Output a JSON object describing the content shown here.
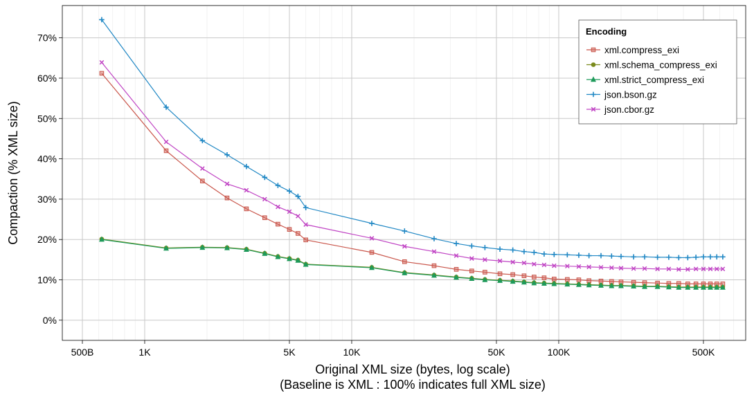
{
  "chart_data": {
    "type": "line",
    "x_scale": "log",
    "xlabel": "Original  XML  size (bytes, log scale)",
    "xlabel2": "(Baseline is  XML : 100% indicates full  XML  size)",
    "ylabel": "Compaction (%  XML  size)",
    "xlim": [
      400,
      800000
    ],
    "ylim": [
      -5,
      78
    ],
    "grid": true,
    "legend_placement": "top-right",
    "legend_title": "Encoding",
    "x_ticks": [
      {
        "value": 500,
        "label": "500B"
      },
      {
        "value": 1000,
        "label": "1K"
      },
      {
        "value": 5000,
        "label": "5K"
      },
      {
        "value": 10000,
        "label": "10K"
      },
      {
        "value": 50000,
        "label": "50K"
      },
      {
        "value": 100000,
        "label": "100K"
      },
      {
        "value": 500000,
        "label": "500K"
      }
    ],
    "y_ticks": [
      {
        "value": 0,
        "label": "0%"
      },
      {
        "value": 10,
        "label": "10%"
      },
      {
        "value": 20,
        "label": "20%"
      },
      {
        "value": 30,
        "label": "30%"
      },
      {
        "value": 40,
        "label": "40%"
      },
      {
        "value": 50,
        "label": "50%"
      },
      {
        "value": 60,
        "label": "60%"
      },
      {
        "value": 70,
        "label": "70%"
      }
    ],
    "series": [
      {
        "name": "xml.compress_exi",
        "color": "#C9554A",
        "marker": "square",
        "points": [
          [
            620,
            61.2
          ],
          [
            1270,
            42
          ],
          [
            1900,
            34.5
          ],
          [
            2500,
            30.3
          ],
          [
            3100,
            27.6
          ],
          [
            3800,
            25.4
          ],
          [
            4400,
            23.8
          ],
          [
            5000,
            22.5
          ],
          [
            5500,
            21.5
          ],
          [
            6000,
            19.9
          ],
          [
            12500,
            16.8
          ],
          [
            18000,
            14.5
          ],
          [
            25000,
            13.5
          ],
          [
            32000,
            12.6
          ],
          [
            38000,
            12.2
          ],
          [
            44000,
            11.9
          ],
          [
            52000,
            11.5
          ],
          [
            60000,
            11.3
          ],
          [
            68000,
            11
          ],
          [
            76000,
            10.7
          ],
          [
            85000,
            10.5
          ],
          [
            95000,
            10.2
          ],
          [
            110000,
            10.1
          ],
          [
            125000,
            10
          ],
          [
            140000,
            9.8
          ],
          [
            160000,
            9.7
          ],
          [
            180000,
            9.6
          ],
          [
            200000,
            9.5
          ],
          [
            230000,
            9.4
          ],
          [
            260000,
            9.3
          ],
          [
            300000,
            9.2
          ],
          [
            340000,
            9.1
          ],
          [
            380000,
            9.1
          ],
          [
            420000,
            9
          ],
          [
            460000,
            9
          ],
          [
            500000,
            9
          ],
          [
            540000,
            9
          ],
          [
            580000,
            9
          ],
          [
            620000,
            9
          ]
        ]
      },
      {
        "name": "xml.schema_compress_exi",
        "color": "#7A8A1C",
        "marker": "circle",
        "points": [
          [
            620,
            20.1
          ],
          [
            1270,
            17.9
          ],
          [
            1900,
            18.1
          ],
          [
            2500,
            18
          ],
          [
            3100,
            17.6
          ],
          [
            3800,
            16.6
          ],
          [
            4400,
            15.8
          ],
          [
            5000,
            15.3
          ],
          [
            5500,
            14.9
          ],
          [
            6000,
            13.9
          ],
          [
            12500,
            13.1
          ],
          [
            18000,
            11.8
          ],
          [
            25000,
            11.2
          ],
          [
            32000,
            10.7
          ],
          [
            38000,
            10.4
          ],
          [
            44000,
            10.1
          ],
          [
            52000,
            9.9
          ],
          [
            60000,
            9.7
          ],
          [
            68000,
            9.5
          ],
          [
            76000,
            9.3
          ],
          [
            85000,
            9.2
          ],
          [
            95000,
            9.1
          ],
          [
            110000,
            9
          ],
          [
            125000,
            8.9
          ],
          [
            140000,
            8.8
          ],
          [
            160000,
            8.7
          ],
          [
            180000,
            8.6
          ],
          [
            200000,
            8.6
          ],
          [
            230000,
            8.5
          ],
          [
            260000,
            8.4
          ],
          [
            300000,
            8.4
          ],
          [
            340000,
            8.3
          ],
          [
            380000,
            8.2
          ],
          [
            420000,
            8.2
          ],
          [
            460000,
            8.2
          ],
          [
            500000,
            8.2
          ],
          [
            540000,
            8.2
          ],
          [
            580000,
            8.2
          ],
          [
            620000,
            8.2
          ]
        ]
      },
      {
        "name": "xml.strict_compress_exi",
        "color": "#1E9A5A",
        "marker": "triangle",
        "points": [
          [
            620,
            20
          ],
          [
            1270,
            17.8
          ],
          [
            1900,
            18
          ],
          [
            2500,
            17.9
          ],
          [
            3100,
            17.5
          ],
          [
            3800,
            16.5
          ],
          [
            4400,
            15.7
          ],
          [
            5000,
            15.2
          ],
          [
            5500,
            14.8
          ],
          [
            6000,
            13.8
          ],
          [
            12500,
            13
          ],
          [
            18000,
            11.7
          ],
          [
            25000,
            11.1
          ],
          [
            32000,
            10.6
          ],
          [
            38000,
            10.3
          ],
          [
            44000,
            10
          ],
          [
            52000,
            9.8
          ],
          [
            60000,
            9.6
          ],
          [
            68000,
            9.4
          ],
          [
            76000,
            9.2
          ],
          [
            85000,
            9.1
          ],
          [
            95000,
            9
          ],
          [
            110000,
            8.9
          ],
          [
            125000,
            8.8
          ],
          [
            140000,
            8.7
          ],
          [
            160000,
            8.6
          ],
          [
            180000,
            8.5
          ],
          [
            200000,
            8.5
          ],
          [
            230000,
            8.4
          ],
          [
            260000,
            8.3
          ],
          [
            300000,
            8.3
          ],
          [
            340000,
            8.2
          ],
          [
            380000,
            8.1
          ],
          [
            420000,
            8.1
          ],
          [
            460000,
            8.1
          ],
          [
            500000,
            8.1
          ],
          [
            540000,
            8.1
          ],
          [
            580000,
            8.1
          ],
          [
            620000,
            8.1
          ]
        ]
      },
      {
        "name": "json.bson.gz",
        "color": "#1F87C4",
        "marker": "plus",
        "points": [
          [
            620,
            74.5
          ],
          [
            1270,
            52.8
          ],
          [
            1900,
            44.5
          ],
          [
            2500,
            41
          ],
          [
            3100,
            38.1
          ],
          [
            3800,
            35.4
          ],
          [
            4400,
            33.4
          ],
          [
            5000,
            32
          ],
          [
            5500,
            30.7
          ],
          [
            6000,
            27.9
          ],
          [
            12500,
            24
          ],
          [
            18000,
            22.1
          ],
          [
            25000,
            20.2
          ],
          [
            32000,
            19
          ],
          [
            38000,
            18.4
          ],
          [
            44000,
            18
          ],
          [
            52000,
            17.6
          ],
          [
            60000,
            17.4
          ],
          [
            68000,
            17
          ],
          [
            76000,
            16.8
          ],
          [
            85000,
            16.4
          ],
          [
            95000,
            16.3
          ],
          [
            110000,
            16.2
          ],
          [
            125000,
            16.1
          ],
          [
            140000,
            16
          ],
          [
            160000,
            16
          ],
          [
            180000,
            15.9
          ],
          [
            200000,
            15.8
          ],
          [
            230000,
            15.7
          ],
          [
            260000,
            15.7
          ],
          [
            300000,
            15.6
          ],
          [
            340000,
            15.6
          ],
          [
            380000,
            15.5
          ],
          [
            420000,
            15.5
          ],
          [
            460000,
            15.6
          ],
          [
            500000,
            15.7
          ],
          [
            540000,
            15.7
          ],
          [
            580000,
            15.7
          ],
          [
            620000,
            15.7
          ]
        ]
      },
      {
        "name": "json.cbor.gz",
        "color": "#C044C4",
        "marker": "cross",
        "points": [
          [
            620,
            63.9
          ],
          [
            1270,
            44.2
          ],
          [
            1900,
            37.6
          ],
          [
            2500,
            33.8
          ],
          [
            3100,
            32.2
          ],
          [
            3800,
            30
          ],
          [
            4400,
            28.1
          ],
          [
            5000,
            26.9
          ],
          [
            5500,
            25.8
          ],
          [
            6000,
            23.7
          ],
          [
            12500,
            20.3
          ],
          [
            18000,
            18.3
          ],
          [
            25000,
            17
          ],
          [
            32000,
            16
          ],
          [
            38000,
            15.3
          ],
          [
            44000,
            15
          ],
          [
            52000,
            14.7
          ],
          [
            60000,
            14.4
          ],
          [
            68000,
            14.2
          ],
          [
            76000,
            13.9
          ],
          [
            85000,
            13.7
          ],
          [
            95000,
            13.5
          ],
          [
            110000,
            13.4
          ],
          [
            125000,
            13.3
          ],
          [
            140000,
            13.2
          ],
          [
            160000,
            13.1
          ],
          [
            180000,
            13
          ],
          [
            200000,
            12.9
          ],
          [
            230000,
            12.8
          ],
          [
            260000,
            12.8
          ],
          [
            300000,
            12.7
          ],
          [
            340000,
            12.7
          ],
          [
            380000,
            12.6
          ],
          [
            420000,
            12.6
          ],
          [
            460000,
            12.7
          ],
          [
            500000,
            12.7
          ],
          [
            540000,
            12.7
          ],
          [
            580000,
            12.7
          ],
          [
            620000,
            12.7
          ]
        ]
      }
    ]
  }
}
